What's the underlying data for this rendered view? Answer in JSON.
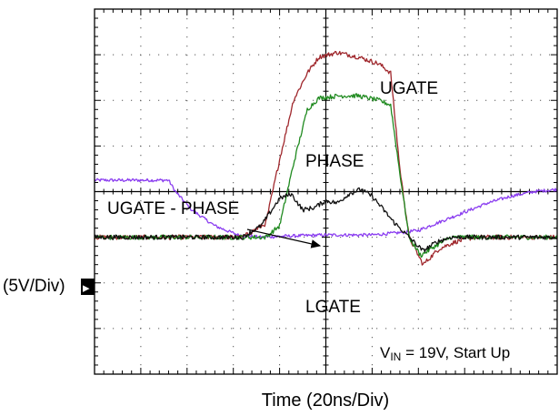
{
  "chart_data": {
    "type": "line",
    "title": "",
    "xlabel": "Time  (20ns/Div)",
    "ylabel": "(5V/Div)",
    "grid": true,
    "x_divisions": 10,
    "y_divisions": 8,
    "x_unit_per_div": "20ns",
    "y_unit_per_div": "5V",
    "annotations": {
      "ugate": "UGATE",
      "phase": "PHASE",
      "diff": "UGATE - PHASE",
      "lgate": "LGATE",
      "cond_sub": "IN",
      "cond_rest": " = 19V, Start Up"
    },
    "ground_marker": "▸",
    "colors": {
      "ugate": "#a0282d",
      "phase": "#1f8a1f",
      "diff": "#101010",
      "lgate": "#8a3cf0"
    },
    "series": [
      {
        "name": "UGATE",
        "color_key": "ugate",
        "x": [
          0,
          1.5,
          3.2,
          3.7,
          4.0,
          4.3,
          4.6,
          4.85,
          5.25,
          5.7,
          6.15,
          6.4,
          6.6,
          6.8,
          7.1,
          7.45,
          7.8,
          8.2,
          8.6,
          9.0,
          9.5,
          10
        ],
        "y": [
          0,
          0,
          0,
          0.3,
          1.7,
          3.0,
          3.6,
          3.95,
          4.05,
          3.95,
          3.8,
          3.6,
          1.5,
          0,
          -0.6,
          -0.25,
          -0.1,
          0,
          0,
          0,
          0,
          0
        ]
      },
      {
        "name": "PHASE",
        "color_key": "phase",
        "x": [
          0,
          1.5,
          3.2,
          3.7,
          4.0,
          4.3,
          4.6,
          4.85,
          5.3,
          5.7,
          6.15,
          6.4,
          6.6,
          6.8,
          7.05,
          7.35,
          7.7,
          8.1,
          8.5,
          9.0,
          9.5,
          10
        ],
        "y": [
          0,
          0,
          0,
          0,
          0.25,
          1.6,
          2.8,
          3.05,
          3.1,
          3.1,
          3.0,
          2.9,
          1.4,
          0,
          -0.4,
          -0.2,
          0,
          0,
          0,
          0,
          0,
          0
        ]
      },
      {
        "name": "UGATE - PHASE",
        "color_key": "diff",
        "x": [
          0,
          1.5,
          3.2,
          3.6,
          4.0,
          4.25,
          4.5,
          4.75,
          5.0,
          5.25,
          5.5,
          5.75,
          6.0,
          6.25,
          6.45,
          6.7,
          6.9,
          7.1,
          7.4,
          7.7,
          8.1,
          8.5,
          9.0,
          9.5,
          10
        ],
        "y": [
          0,
          0,
          0,
          0.25,
          0.85,
          0.95,
          0.6,
          0.65,
          0.8,
          0.75,
          0.95,
          1.05,
          0.9,
          0.6,
          0.35,
          0.1,
          -0.1,
          -0.3,
          -0.1,
          0,
          0,
          0,
          0,
          0,
          0
        ]
      },
      {
        "name": "LGATE",
        "color_key": "lgate",
        "x": [
          0,
          1.6,
          1.75,
          2.1,
          2.6,
          3.1,
          3.6,
          4.0,
          5.0,
          6.0,
          6.6,
          7.0,
          7.5,
          8.0,
          8.5,
          9.0,
          9.5,
          10
        ],
        "y": [
          1.25,
          1.25,
          1.0,
          0.6,
          0.25,
          0.05,
          0,
          0.02,
          0.05,
          0.05,
          0.1,
          0.15,
          0.35,
          0.55,
          0.75,
          0.9,
          1.0,
          1.05
        ]
      }
    ]
  }
}
